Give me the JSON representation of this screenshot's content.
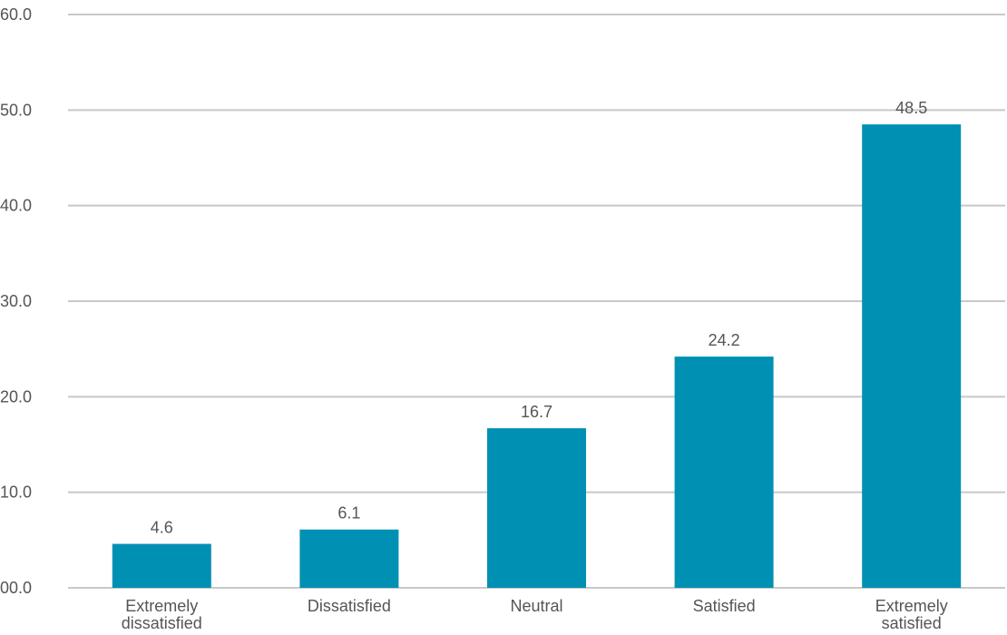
{
  "chart_data": {
    "type": "bar",
    "categories": [
      "Extremely dissatisfied",
      "Dissatisfied",
      "Neutral",
      "Satisfied",
      "Extremely satisfied"
    ],
    "category_label_lines": [
      [
        "Extremely",
        "dissatisfied"
      ],
      [
        "Dissatisfied"
      ],
      [
        "Neutral"
      ],
      [
        "Satisfied"
      ],
      [
        "Extremely",
        "satisfied"
      ]
    ],
    "values": [
      4.6,
      6.1,
      16.7,
      24.2,
      48.5
    ],
    "data_labels": [
      "4.6",
      "6.1",
      "16.7",
      "24.2",
      "48.5"
    ],
    "y_ticks": [
      0,
      10,
      20,
      30,
      40,
      50,
      60
    ],
    "y_tick_labels": [
      "00.0",
      "10.0",
      "20.0",
      "30.0",
      "40.0",
      "50.0",
      "60.0"
    ],
    "ylim": [
      0,
      60
    ],
    "title": "",
    "xlabel": "",
    "ylabel": "",
    "grid": true,
    "legend": "none",
    "bar_color": "#0090b3",
    "gridline_color": "#c8c8c8",
    "text_color": "#555555"
  }
}
